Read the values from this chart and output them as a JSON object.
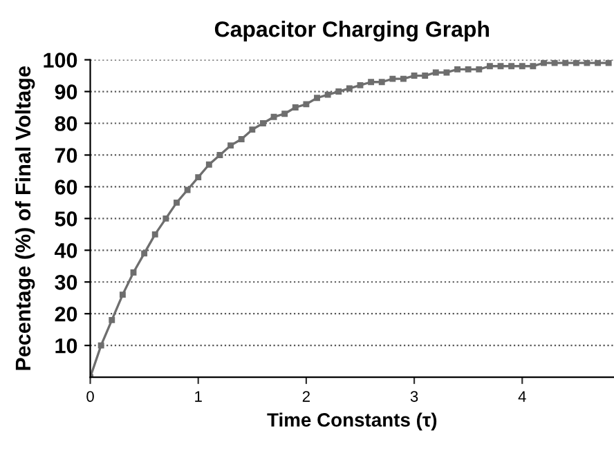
{
  "chart_data": {
    "type": "line",
    "title": "Capacitor Charging Graph",
    "xlabel": "Time Constants (τ)",
    "ylabel": "Pecentage (%) of Final Voltage",
    "x": [
      0,
      0.1,
      0.2,
      0.3,
      0.4,
      0.5,
      0.6,
      0.7,
      0.8,
      0.9,
      1.0,
      1.1,
      1.2,
      1.3,
      1.4,
      1.5,
      1.6,
      1.7,
      1.8,
      1.9,
      2.0,
      2.1,
      2.2,
      2.3,
      2.4,
      2.5,
      2.6,
      2.7,
      2.8,
      2.9,
      3.0,
      3.1,
      3.2,
      3.3,
      3.4,
      3.5,
      3.6,
      3.7,
      3.8,
      3.9,
      4.0,
      4.1,
      4.2,
      4.3,
      4.4,
      4.5,
      4.6,
      4.7,
      4.8
    ],
    "series": [
      {
        "color": "#6e6e6e",
        "values": [
          0,
          10,
          18,
          26,
          33,
          39,
          45,
          50,
          55,
          59,
          63,
          67,
          70,
          73,
          75,
          78,
          80,
          82,
          83,
          85,
          86,
          88,
          89,
          90,
          91,
          92,
          93,
          93,
          94,
          94,
          95,
          95,
          96,
          96,
          97,
          97,
          97,
          98,
          98,
          98,
          98,
          98,
          99,
          99,
          99,
          99,
          99,
          99,
          99
        ]
      }
    ],
    "xlim": [
      0,
      4.85
    ],
    "xticks": [
      0,
      1,
      2,
      3,
      4
    ],
    "ylim": [
      0,
      100
    ],
    "yticks": [
      10,
      20,
      30,
      40,
      50,
      60,
      70,
      80,
      90,
      100
    ],
    "grid": "y",
    "marker": "square",
    "line_style": "solid"
  }
}
